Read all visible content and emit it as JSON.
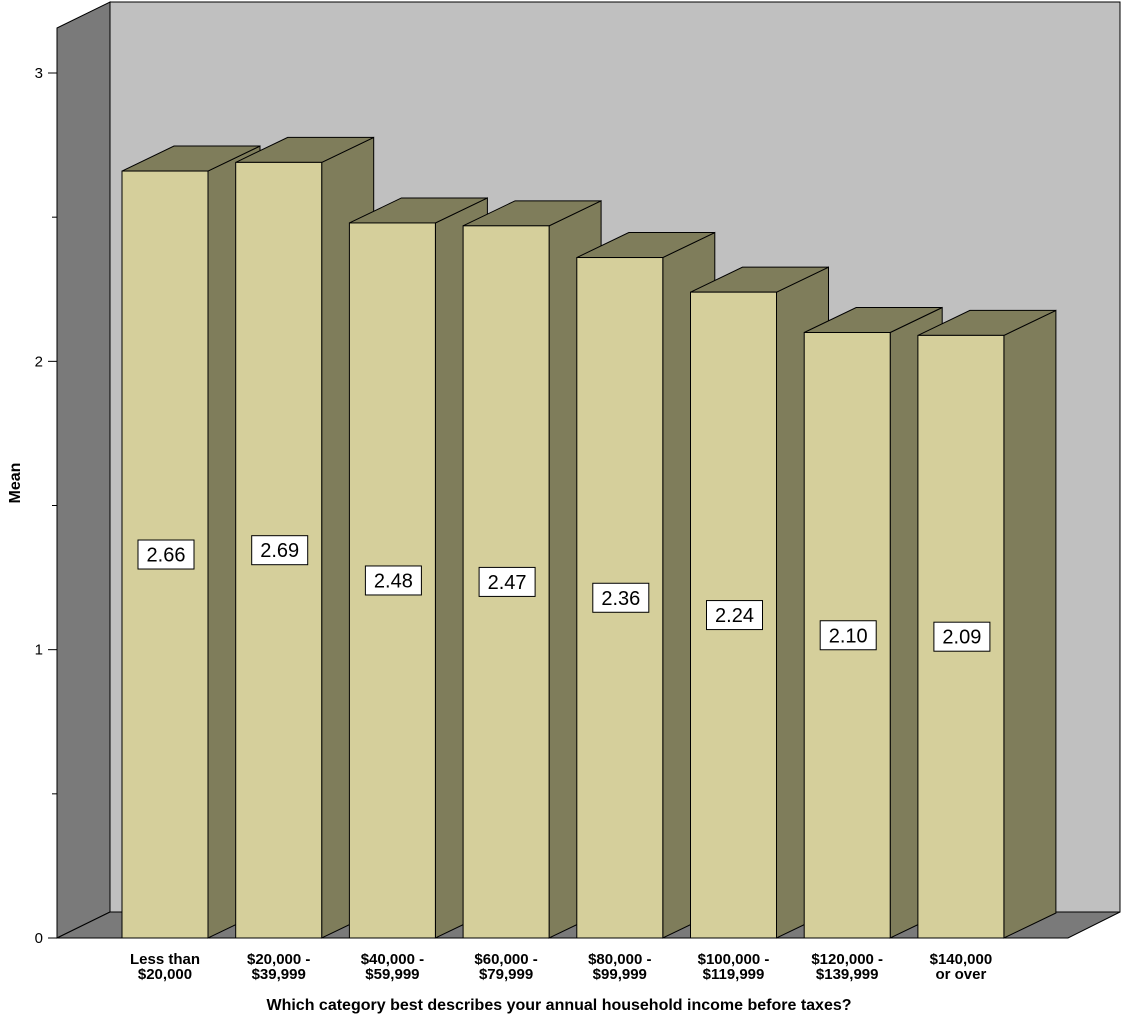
{
  "chart_data": {
    "type": "bar",
    "title": "",
    "xlabel": "Which category best describes your annual household income before taxes?",
    "ylabel": "Mean",
    "ylim": [
      0,
      3
    ],
    "yticks": [
      "0",
      "1",
      "2",
      "3"
    ],
    "categories": [
      [
        "Less than",
        "$20,000"
      ],
      [
        "$20,000 -",
        "$39,999"
      ],
      [
        "$40,000 -",
        "$59,999"
      ],
      [
        "$60,000 -",
        "$79,999"
      ],
      [
        "$80,000 -",
        "$99,999"
      ],
      [
        "$100,000 -",
        "$119,999"
      ],
      [
        "$120,000 -",
        "$139,999"
      ],
      [
        "$140,000",
        "or over"
      ]
    ],
    "values": [
      2.66,
      2.69,
      2.48,
      2.47,
      2.36,
      2.24,
      2.1,
      2.09
    ],
    "value_labels": [
      "2.66",
      "2.69",
      "2.48",
      "2.47",
      "2.36",
      "2.24",
      "2.10",
      "2.09"
    ],
    "grid": false,
    "style": "3d",
    "colors": {
      "bar_front": "#d5cf9b",
      "bar_side": "#7f7d5b",
      "bar_top": "#7f7d5b",
      "back_wall": "#c0c0c0",
      "side_wall": "#7a7a7a",
      "floor": "#7a7a7a",
      "outline": "#000000"
    }
  }
}
